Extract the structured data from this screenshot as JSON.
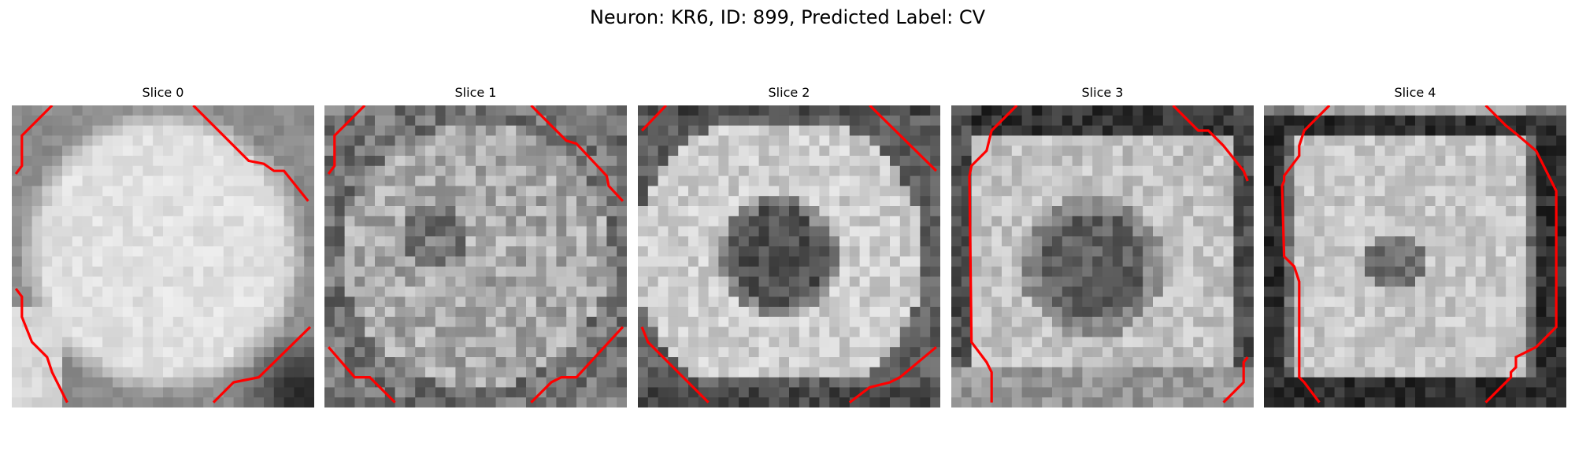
{
  "figure": {
    "title": "Neuron: KR6, ID: 899, Predicted Label: CV"
  },
  "overlay_color": "#ff0000",
  "panels": [
    {
      "title": "Slice 0"
    },
    {
      "title": "Slice 1"
    },
    {
      "title": "Slice 2"
    },
    {
      "title": "Slice 3"
    },
    {
      "title": "Slice 4"
    }
  ]
}
